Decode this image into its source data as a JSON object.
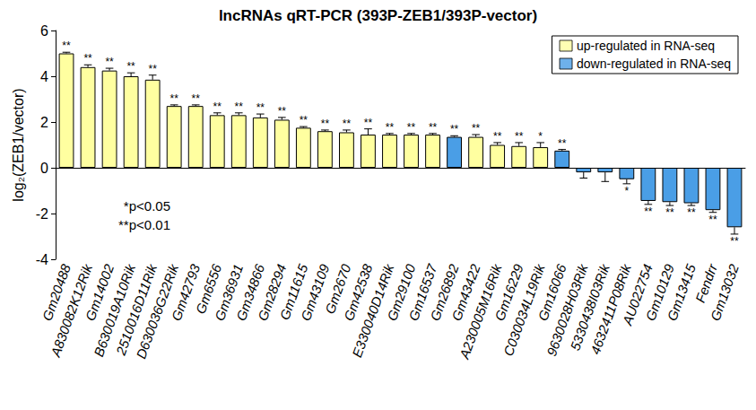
{
  "chart_data": {
    "type": "bar",
    "title": "lncRNAs qRT-PCR (393P-ZEB1/393P-vector)",
    "y_label": "log₂(ZEB1/vector)",
    "categories": [
      "Gm20488",
      "A830082K12Rik",
      "Gm14002",
      "B630019A10Rik",
      "2510016D11Rik",
      "D630036G22Rik",
      "Gm42793",
      "Gm6556",
      "Gm36931",
      "Gm34866",
      "Gm28294",
      "Gm11615",
      "Gm43109",
      "Gm2670",
      "Gm42538",
      "E330040D14Rik",
      "Gm29100",
      "Gm16537",
      "Gm26892",
      "Gm43422",
      "A230005M16Rik",
      "Gm16229",
      "C030034L19Rik",
      "Gm16066",
      "9630028H03Rik",
      "5330438I03Rik",
      "4632411P08Rik",
      "AU022754",
      "Gm10129",
      "Gm13415",
      "Fendrr",
      "Gm13032"
    ],
    "values": [
      5.0,
      4.4,
      4.25,
      4.0,
      3.85,
      2.7,
      2.7,
      2.3,
      2.3,
      2.2,
      2.1,
      1.75,
      1.6,
      1.55,
      1.45,
      1.45,
      1.45,
      1.45,
      1.35,
      1.35,
      1.0,
      0.95,
      0.9,
      0.75,
      -0.2,
      -0.2,
      -0.5,
      -1.45,
      -1.5,
      -1.55,
      -1.85,
      -2.6
    ],
    "errors": [
      0.05,
      0.1,
      0.1,
      0.15,
      0.2,
      0.05,
      0.05,
      0.1,
      0.1,
      0.15,
      0.1,
      0.05,
      0.05,
      0.1,
      0.25,
      0.05,
      0.05,
      0.05,
      0.05,
      0.1,
      0.1,
      0.15,
      0.2,
      0.05,
      0.25,
      0.4,
      0.2,
      0.15,
      0.15,
      0.1,
      0.1,
      0.3
    ],
    "significance": [
      "**",
      "**",
      "**",
      "**",
      "**",
      "**",
      "**",
      "**",
      "**",
      "**",
      "**",
      "**",
      "**",
      "**",
      "**",
      "**",
      "**",
      "**",
      "**",
      "**",
      "**",
      "**",
      "*",
      "**",
      null,
      null,
      "*",
      "**",
      "**",
      "**",
      "**",
      "**"
    ],
    "colors": [
      "#ffffa0",
      "#ffffa0",
      "#ffffa0",
      "#ffffa0",
      "#ffffa0",
      "#ffffa0",
      "#ffffa0",
      "#ffffa0",
      "#ffffa0",
      "#ffffa0",
      "#ffffa0",
      "#ffffa0",
      "#ffffa0",
      "#ffffa0",
      "#ffffa0",
      "#ffffa0",
      "#ffffa0",
      "#ffffa0",
      "#4a9ee6",
      "#ffffa0",
      "#ffffa0",
      "#ffffa0",
      "#ffffa0",
      "#4a9ee6",
      "#4a9ee6",
      "#4a9ee6",
      "#4a9ee6",
      "#4a9ee6",
      "#4a9ee6",
      "#4a9ee6",
      "#4a9ee6",
      "#4a9ee6"
    ],
    "legend": "upper right",
    "legend_entries": [
      {
        "name": "up-regulated in RNA-seq",
        "color": "#ffffa0"
      },
      {
        "name": "down-regulated in RNA-seq",
        "color": "#4a9ee6"
      }
    ],
    "annotations": [
      "*p<0.05",
      "**p<0.01"
    ],
    "ylim": [
      -4,
      6
    ],
    "yticks": [
      -4,
      -2,
      0,
      2,
      4,
      6
    ],
    "grid": false
  }
}
